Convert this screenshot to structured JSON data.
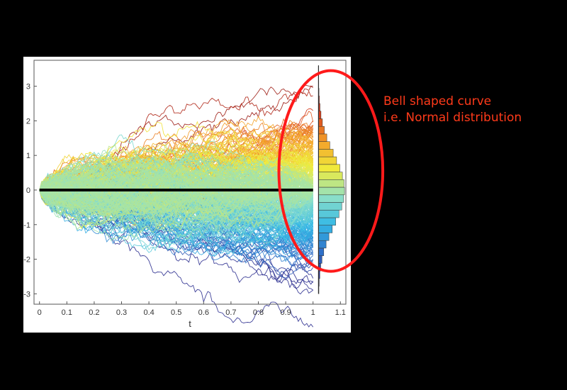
{
  "annotation": {
    "line1": "Bell shaped curve",
    "line2": "i.e. Normal distribution",
    "color": "#ff3a1a"
  },
  "chart_data": {
    "type": "line",
    "title": "",
    "xlabel": "t",
    "ylabel": "",
    "xlim": [
      -0.02,
      1.12
    ],
    "ylim": [
      -3.3,
      3.75
    ],
    "x_ticks": [
      0,
      0.1,
      0.2,
      0.3,
      0.4,
      0.5,
      0.6,
      0.7,
      0.8,
      0.9,
      1,
      1.1
    ],
    "x_tick_labels": [
      "0",
      "0.1",
      "0.2",
      "0.3",
      "0.4",
      "0.5",
      "0.6",
      "0.7",
      "0.8",
      "0.9",
      "1",
      "1.1"
    ],
    "y_ticks": [
      -3,
      -2,
      -1,
      0,
      1,
      2,
      3
    ],
    "y_tick_labels": [
      "-3",
      "-2",
      "-1",
      "0",
      "1",
      "2",
      "3"
    ],
    "grid": false,
    "legend": "none",
    "paths": {
      "description_value": "many simulated random-walk paths starting at 0, spreading with sqrt(t); colored by final value (blue low, red high)",
      "t_start": 0,
      "t_end": 1,
      "start_value": 0,
      "final_std": 1.0,
      "colormap": [
        "#2b2d8f",
        "#2f6fc9",
        "#35b9e6",
        "#8fe0c8",
        "#f0ec3c",
        "#f4a12a",
        "#d83b1c",
        "#9a1a12"
      ]
    },
    "mean_line": {
      "t_start": 0,
      "t_end": 1,
      "value": 0,
      "color": "#000000"
    },
    "histogram": {
      "orientation": "horizontal",
      "x_base": 1.02,
      "x_peak": 1.115,
      "bin_range": [
        -3.0,
        3.6
      ],
      "bins": 30,
      "distribution": "normal",
      "mean": 0,
      "std": 1.0
    },
    "highlight_ellipse": {
      "center_t": 1.065,
      "center_value": 0.55,
      "radius_t": 0.19,
      "radius_value": 2.9,
      "color": "#ff1a1a"
    }
  }
}
